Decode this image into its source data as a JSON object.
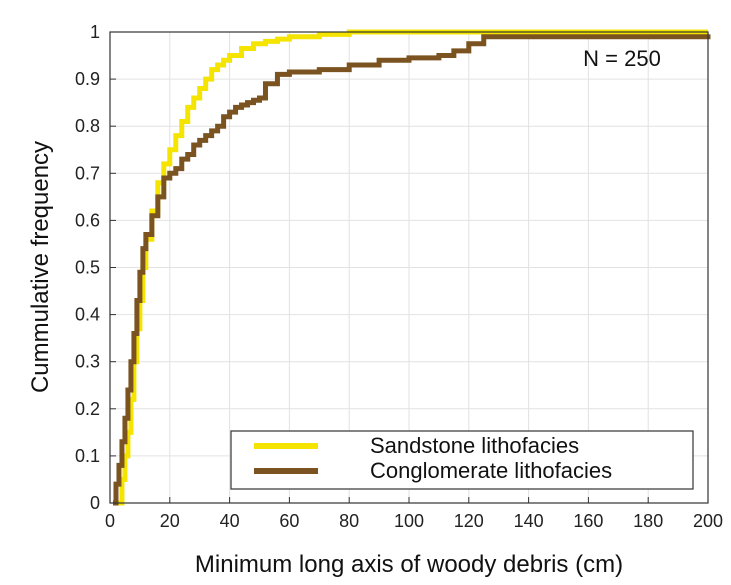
{
  "chart_data": {
    "type": "line",
    "xlabel": "Minimum long axis of woody debris (cm)",
    "ylabel": "Cummulative frequency",
    "xlim": [
      0,
      200
    ],
    "ylim": [
      0,
      1
    ],
    "x_ticks": [
      "0",
      "20",
      "40",
      "60",
      "80",
      "100",
      "120",
      "140",
      "160",
      "180",
      "200"
    ],
    "y_ticks": [
      "0",
      "0.1",
      "0.2",
      "0.3",
      "0.4",
      "0.5",
      "0.6",
      "0.7",
      "0.8",
      "0.9",
      "1"
    ],
    "grid": true,
    "legend_position": "bottom-right",
    "annotation": "N = 250",
    "series": [
      {
        "name": "Sandstone lithofacies",
        "color": "#f5e400",
        "x": [
          2,
          4,
          5,
          6,
          7,
          8,
          9,
          10,
          11,
          12,
          14,
          16,
          18,
          20,
          22,
          24,
          26,
          28,
          30,
          32,
          34,
          36,
          38,
          40,
          44,
          48,
          52,
          56,
          60,
          70,
          80,
          100,
          120,
          200
        ],
        "y": [
          0,
          0.05,
          0.1,
          0.15,
          0.22,
          0.3,
          0.37,
          0.43,
          0.5,
          0.56,
          0.62,
          0.68,
          0.72,
          0.75,
          0.78,
          0.81,
          0.84,
          0.86,
          0.88,
          0.9,
          0.92,
          0.93,
          0.94,
          0.95,
          0.965,
          0.975,
          0.98,
          0.985,
          0.99,
          0.995,
          1.0,
          1.0,
          1.0,
          1.0
        ]
      },
      {
        "name": "Conglomerate lithofacies",
        "color": "#7a5320",
        "x": [
          1,
          2,
          3,
          4,
          5,
          6,
          7,
          8,
          9,
          10,
          11,
          12,
          14,
          16,
          18,
          20,
          22,
          24,
          26,
          28,
          30,
          32,
          34,
          36,
          38,
          40,
          42,
          44,
          46,
          48,
          50,
          52,
          56,
          60,
          70,
          80,
          90,
          100,
          110,
          115,
          120,
          125,
          200
        ],
        "y": [
          0,
          0.04,
          0.08,
          0.13,
          0.18,
          0.24,
          0.3,
          0.36,
          0.43,
          0.49,
          0.54,
          0.57,
          0.61,
          0.65,
          0.69,
          0.7,
          0.71,
          0.73,
          0.74,
          0.76,
          0.77,
          0.78,
          0.79,
          0.8,
          0.82,
          0.83,
          0.84,
          0.845,
          0.85,
          0.855,
          0.86,
          0.89,
          0.91,
          0.915,
          0.92,
          0.93,
          0.94,
          0.945,
          0.95,
          0.96,
          0.975,
          0.99,
          0.995
        ]
      }
    ]
  }
}
